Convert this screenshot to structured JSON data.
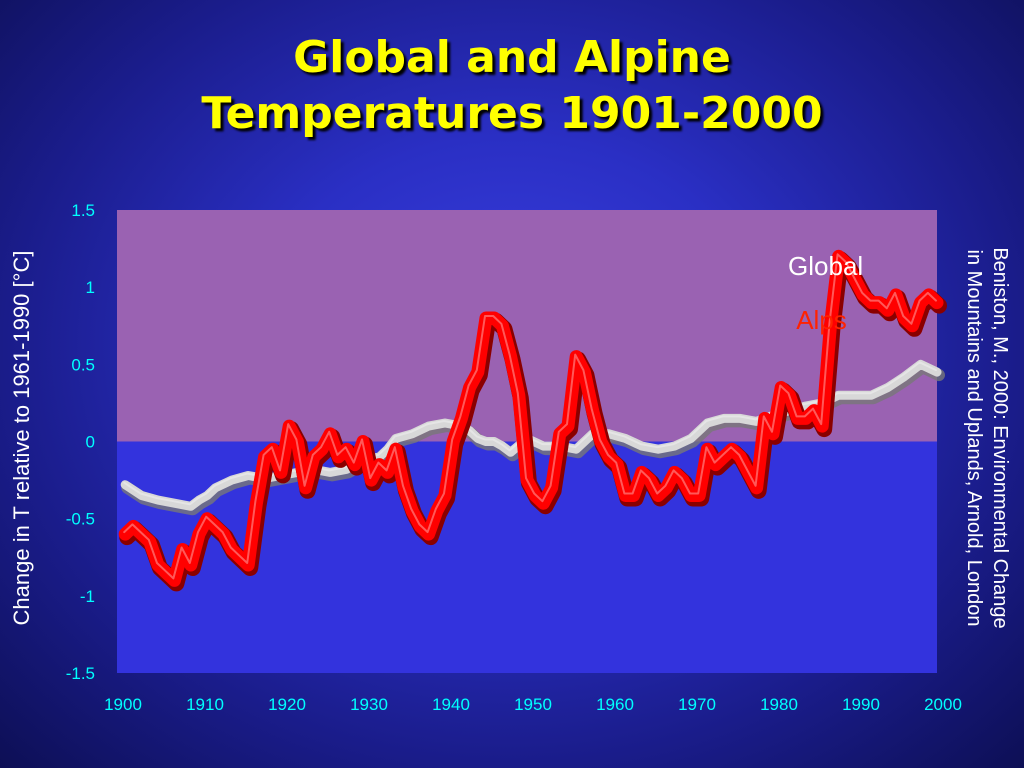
{
  "slide": {
    "title_line1": "Global and Alpine",
    "title_line2": "Temperatures 1901-2000",
    "source_line1": "Beniston, M., 2000: Environmental Change",
    "source_line2": "in Mountains and Uplands, Arnold, London"
  },
  "chart_data": {
    "type": "line",
    "ylabel": "Change in T relative to 1961-1990 [°C]",
    "xlabel": "",
    "xlim": [
      1900,
      2000
    ],
    "ylim": [
      -1.5,
      1.5
    ],
    "xticks": [
      1900,
      1910,
      1920,
      1930,
      1940,
      1950,
      1960,
      1970,
      1980,
      1990,
      2000
    ],
    "yticks": [
      1.5,
      1,
      0.5,
      0,
      -0.5,
      -1,
      -1.5
    ],
    "ytick_labels": [
      "1.5",
      "1",
      "0.5",
      "0",
      "-0.5",
      "-1",
      "-1.5"
    ],
    "colors": {
      "positive_band": "#9a62b2",
      "negative_band": "#3333dd",
      "global": "#d8d8d8",
      "alps": "#ff0000",
      "tick_text": "#00ffff"
    },
    "series": [
      {
        "name": "Global",
        "color": "#d8d8d8",
        "x": [
          1901,
          1903,
          1905,
          1907,
          1909,
          1910,
          1911,
          1912,
          1914,
          1916,
          1918,
          1920,
          1922,
          1924,
          1926,
          1928,
          1930,
          1932,
          1933,
          1934,
          1936,
          1938,
          1940,
          1942,
          1943,
          1944,
          1945,
          1946,
          1947,
          1948,
          1950,
          1952,
          1954,
          1956,
          1958,
          1960,
          1962,
          1964,
          1966,
          1968,
          1970,
          1972,
          1974,
          1976,
          1978,
          1980,
          1982,
          1984,
          1986,
          1988,
          1990,
          1992,
          1994,
          1996,
          1998,
          2000
        ],
        "y": [
          -0.28,
          -0.35,
          -0.38,
          -0.4,
          -0.42,
          -0.38,
          -0.35,
          -0.3,
          -0.25,
          -0.22,
          -0.24,
          -0.22,
          -0.2,
          -0.18,
          -0.2,
          -0.18,
          -0.12,
          -0.1,
          -0.05,
          0.02,
          0.05,
          0.1,
          0.12,
          0.1,
          0.07,
          0.02,
          0.0,
          0.0,
          -0.03,
          -0.07,
          0.02,
          -0.03,
          -0.03,
          -0.05,
          0.05,
          0.05,
          0.02,
          -0.03,
          -0.05,
          -0.03,
          0.02,
          0.12,
          0.15,
          0.15,
          0.13,
          0.17,
          0.2,
          0.23,
          0.25,
          0.3,
          0.3,
          0.3,
          0.35,
          0.42,
          0.5,
          0.45
        ]
      },
      {
        "name": "Alps",
        "color": "#ff0000",
        "x": [
          1901,
          1902,
          1903,
          1904,
          1905,
          1906,
          1907,
          1908,
          1909,
          1910,
          1911,
          1912,
          1913,
          1914,
          1915,
          1916,
          1917,
          1918,
          1919,
          1920,
          1921,
          1922,
          1923,
          1924,
          1925,
          1926,
          1927,
          1928,
          1929,
          1930,
          1931,
          1932,
          1933,
          1934,
          1935,
          1936,
          1937,
          1938,
          1939,
          1940,
          1941,
          1942,
          1943,
          1944,
          1945,
          1946,
          1947,
          1948,
          1949,
          1950,
          1951,
          1952,
          1953,
          1954,
          1955,
          1956,
          1957,
          1958,
          1959,
          1960,
          1961,
          1962,
          1963,
          1964,
          1965,
          1966,
          1967,
          1968,
          1969,
          1970,
          1971,
          1972,
          1973,
          1974,
          1975,
          1976,
          1977,
          1978,
          1979,
          1980,
          1981,
          1982,
          1983,
          1984,
          1985,
          1986,
          1987,
          1988,
          1989,
          1990,
          1991,
          1992,
          1993,
          1994,
          1995,
          1996,
          1997,
          1998,
          1999,
          2000
        ],
        "y": [
          -0.6,
          -0.55,
          -0.6,
          -0.65,
          -0.8,
          -0.85,
          -0.9,
          -0.7,
          -0.8,
          -0.6,
          -0.5,
          -0.55,
          -0.6,
          -0.7,
          -0.75,
          -0.8,
          -0.4,
          -0.1,
          -0.05,
          -0.2,
          0.1,
          0.0,
          -0.3,
          -0.1,
          -0.05,
          0.05,
          -0.1,
          -0.05,
          -0.15,
          0.0,
          -0.25,
          -0.15,
          -0.2,
          -0.05,
          -0.3,
          -0.45,
          -0.55,
          -0.6,
          -0.45,
          -0.35,
          0.0,
          0.15,
          0.35,
          0.45,
          0.8,
          0.8,
          0.75,
          0.55,
          0.3,
          -0.25,
          -0.35,
          -0.4,
          -0.3,
          0.05,
          0.1,
          0.55,
          0.45,
          0.2,
          0.0,
          -0.1,
          -0.15,
          -0.35,
          -0.35,
          -0.2,
          -0.25,
          -0.35,
          -0.3,
          -0.2,
          -0.25,
          -0.35,
          -0.35,
          -0.05,
          -0.15,
          -0.1,
          -0.05,
          -0.1,
          -0.2,
          -0.3,
          0.15,
          0.05,
          0.35,
          0.3,
          0.15,
          0.15,
          0.2,
          0.1,
          0.75,
          1.2,
          1.15,
          1.05,
          0.95,
          0.9,
          0.9,
          0.85,
          0.95,
          0.8,
          0.75,
          0.9,
          0.95,
          0.9
        ]
      }
    ],
    "annotations": [
      {
        "text": "Global",
        "color": "#ffffff",
        "x": 1991,
        "y": 1.08
      },
      {
        "text": "Alps",
        "color": "#ff2200",
        "x": 1989,
        "y": 0.73
      }
    ]
  }
}
